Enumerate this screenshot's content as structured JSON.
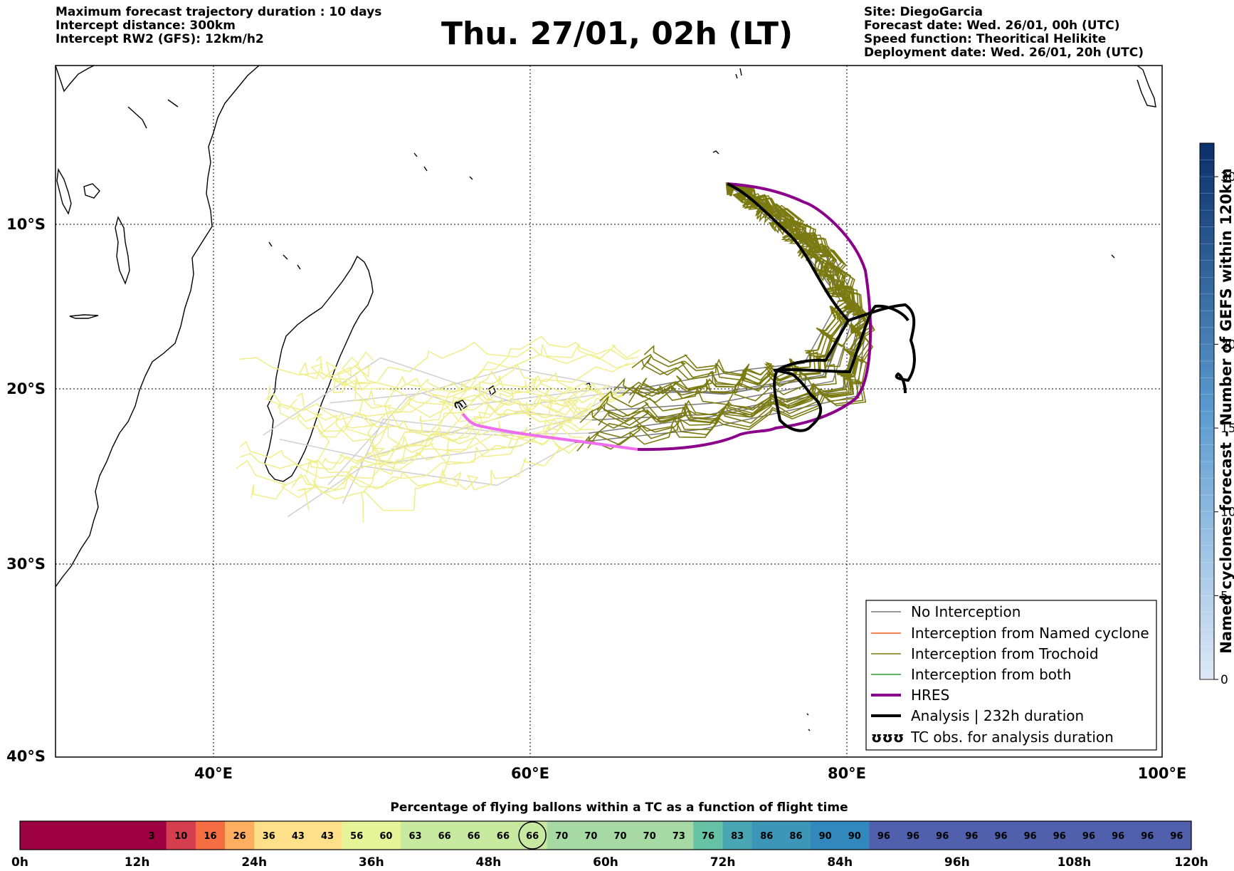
{
  "header": {
    "left_lines": [
      "Maximum forecast trajectory duration : 10 days",
      "Intercept distance: 300km",
      "Intercept RW2 (GFS):  12km/h2"
    ],
    "title": "Thu. 27/01, 02h (LT)",
    "right_lines": [
      "Site: DiegoGarcia",
      "Forecast date: Wed. 26/01, 00h (UTC)",
      "Speed function: Theoritical Helikite",
      "Deployment date: Wed. 26/01, 20h (UTC)"
    ]
  },
  "map": {
    "lon_range": [
      30,
      100
    ],
    "lat_range": [
      -40,
      0
    ],
    "lat_labels": [
      "10°S",
      "20°S",
      "30°S",
      "40°S"
    ],
    "lon_labels": [
      "40°E",
      "60°E",
      "80°E",
      "100°E"
    ],
    "colors": {
      "no_interception": "#7a7a7a",
      "named_cyclone": "#ff5a1f",
      "trochoid": "#7a7a10",
      "both": "#2ca02c",
      "hres": "#8b008b",
      "hres_light": "#ee6eee",
      "analysis": "#000000",
      "future_no_interception": "#cfcfcf",
      "future_trochoid": "#f0ee8a"
    }
  },
  "legend": {
    "items": [
      {
        "label": "No Interception",
        "style": "thin",
        "color": "#7a7a7a"
      },
      {
        "label": "Interception from Named cyclone",
        "style": "thin",
        "color": "#ff5a1f"
      },
      {
        "label": "Interception from Trochoid",
        "style": "thin",
        "color": "#7a7a10"
      },
      {
        "label": "Interception from both",
        "style": "thin",
        "color": "#2ca02c"
      },
      {
        "label": "HRES",
        "style": "thick",
        "color": "#8b008b"
      },
      {
        "label": "Analysis | 232h duration",
        "style": "thick",
        "color": "#000000"
      },
      {
        "label": "TC obs. for analysis duration",
        "style": "symbol",
        "symbol": "ʊʊʊ"
      }
    ]
  },
  "colorbar": {
    "title": "Named cyclones forecast - Number of GEFS within 120km",
    "ticks": [
      "0",
      "5",
      "10",
      "15",
      "20",
      "30"
    ],
    "min": 0,
    "max": 32
  },
  "bottom_bar": {
    "title": "Percentage of flying ballons within a TC as a function of flight time",
    "cells": [
      "",
      "",
      "",
      "",
      "3",
      "10",
      "16",
      "26",
      "36",
      "43",
      "43",
      "56",
      "60",
      "63",
      "66",
      "66",
      "66",
      "66",
      "70",
      "70",
      "70",
      "70",
      "73",
      "76",
      "83",
      "86",
      "86",
      "90",
      "90",
      "96",
      "96",
      "96",
      "96",
      "96",
      "96",
      "96",
      "96",
      "96",
      "96",
      "96"
    ],
    "highlighted_index": 17,
    "ticks": [
      "0h",
      "12h",
      "24h",
      "36h",
      "48h",
      "60h",
      "72h",
      "84h",
      "96h",
      "108h",
      "120h"
    ]
  }
}
